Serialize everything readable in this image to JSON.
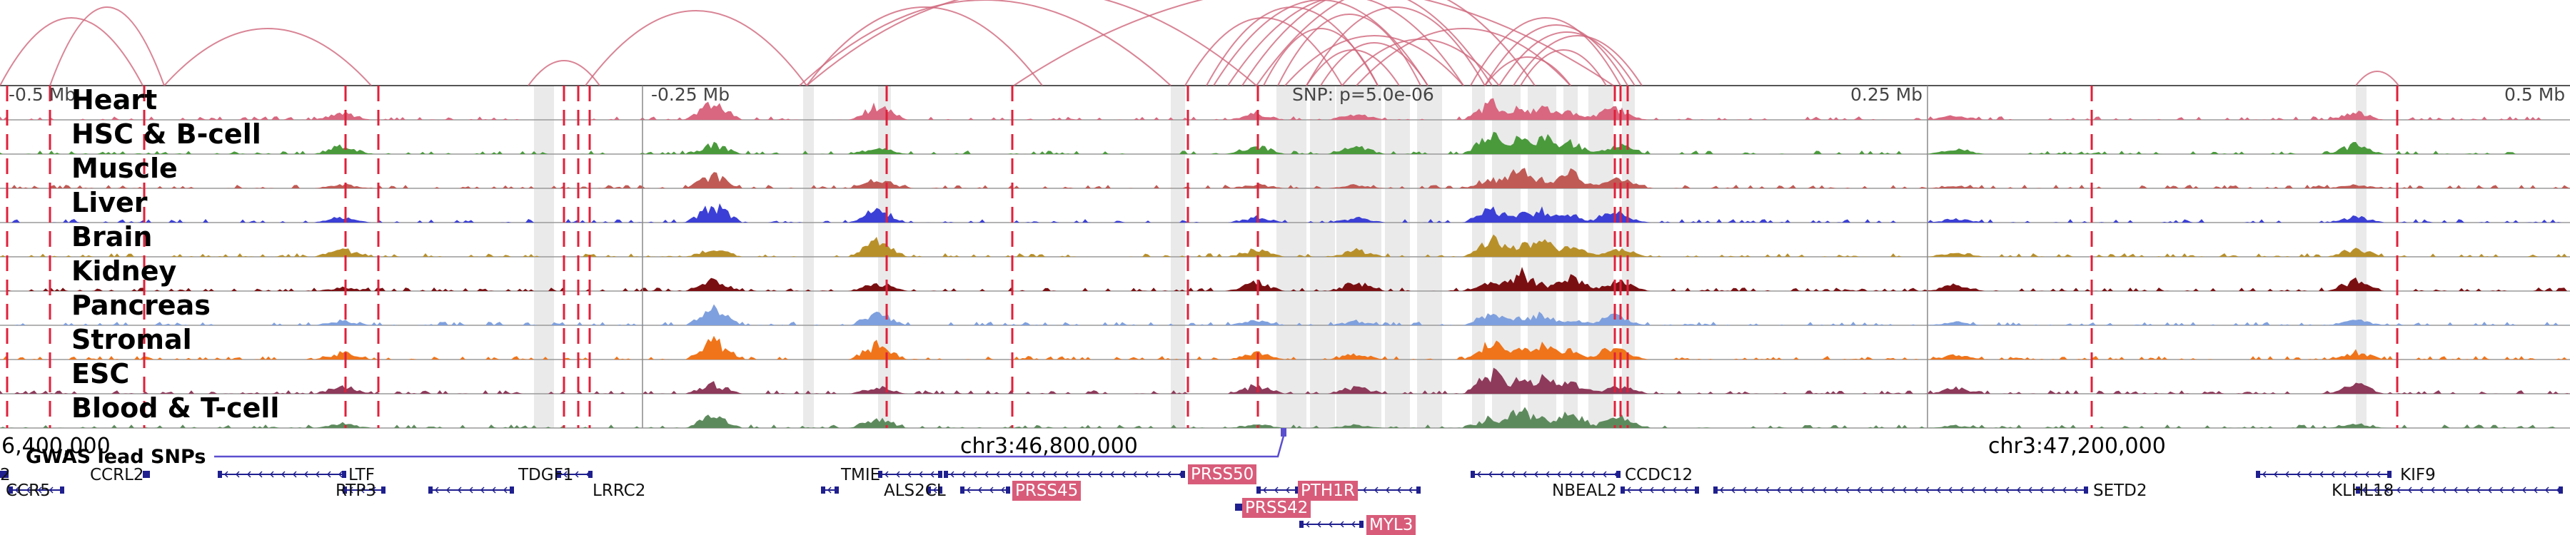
{
  "genomic_view": {
    "chromosome_label_left": "6,400,000",
    "chromosome_label_mid": "chr3:46,800,000",
    "chromosome_label_right": "chr3:47,200,000",
    "ruler": [
      "-0.5 Mb",
      "-0.25 Mb",
      "0.25 Mb",
      "0.5 Mb"
    ],
    "snp_info": "SNP: p=5.0e-06",
    "gwas_label": "GWAS lead SNPs",
    "colors": {
      "arc": "#d0667c",
      "highlight": "#d85c7a",
      "gwas": "#5b4fcf",
      "vline": "#e0203a",
      "gene": "#1f1f8f"
    }
  },
  "tracks": [
    {
      "label": "Heart",
      "color": "#d9677f"
    },
    {
      "label": "HSC & B-cell",
      "color": "#4a9a3c"
    },
    {
      "label": "Muscle",
      "color": "#c05a55"
    },
    {
      "label": "Liver",
      "color": "#3b3fd6"
    },
    {
      "label": "Brain",
      "color": "#b8902a"
    },
    {
      "label": "Kidney",
      "color": "#7a0f12"
    },
    {
      "label": "Pancreas",
      "color": "#7fa0de"
    },
    {
      "label": "Stromal",
      "color": "#f0741a"
    },
    {
      "label": "ESC",
      "color": "#8e3a5a"
    },
    {
      "label": "Blood & T-cell",
      "color": "#5d8a5d"
    }
  ],
  "genes": [
    {
      "name": "CCR5",
      "highlight": false
    },
    {
      "name": "CCRL2",
      "highlight": false
    },
    {
      "name": "LTF",
      "highlight": false
    },
    {
      "name": "RTP3",
      "highlight": false
    },
    {
      "name": "TDGF1",
      "highlight": false
    },
    {
      "name": "LRRC2",
      "highlight": false
    },
    {
      "name": "TMIE",
      "highlight": false
    },
    {
      "name": "ALS2CL",
      "highlight": false
    },
    {
      "name": "PRSS45",
      "highlight": true
    },
    {
      "name": "PRSS50",
      "highlight": true
    },
    {
      "name": "PRSS42",
      "highlight": true
    },
    {
      "name": "PTH1R",
      "highlight": true
    },
    {
      "name": "MYL3",
      "highlight": true
    },
    {
      "name": "CCDC12",
      "highlight": false
    },
    {
      "name": "NBEAL2",
      "highlight": false
    },
    {
      "name": "SETD2",
      "highlight": false
    },
    {
      "name": "KIF9",
      "highlight": false
    },
    {
      "name": "KLHL18",
      "highlight": false
    },
    {
      "name": "2",
      "highlight": false
    }
  ]
}
